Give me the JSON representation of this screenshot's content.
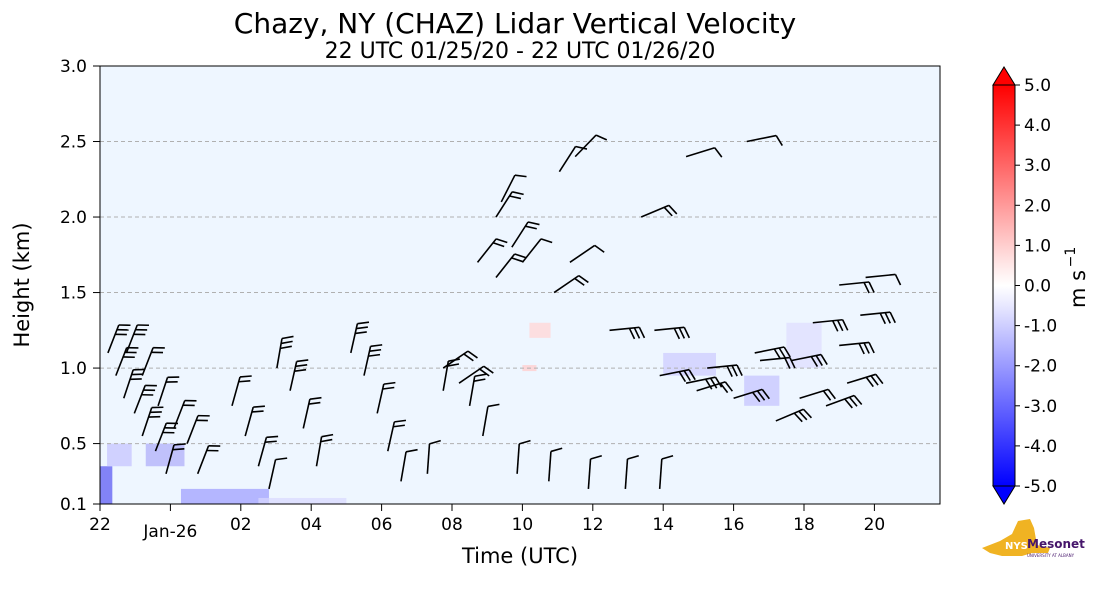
{
  "chart_data": {
    "type": "heatmap",
    "title": "Chazy, NY (CHAZ) Lidar Vertical Velocity",
    "subtitle": "22 UTC 01/25/20 - 22 UTC 01/26/20",
    "xlabel": "Time (UTC)",
    "ylabel": "Height (km)",
    "x_ticks": [
      "22",
      "Jan-26",
      "02",
      "04",
      "06",
      "08",
      "10",
      "12",
      "14",
      "16",
      "18",
      "20"
    ],
    "y_ticks": [
      "0.1",
      "0.5",
      "1.0",
      "1.5",
      "2.0",
      "2.5",
      "3.0"
    ],
    "ylim": [
      0.1,
      3.0
    ],
    "grid": "horizontal dashed at 0.5, 1.0, 1.5, 2.0, 2.5",
    "colorbar": {
      "label": "m s",
      "label_superscript": "−1",
      "ticks": [
        "5.0",
        "4.0",
        "3.0",
        "2.0",
        "1.0",
        "0.0",
        "-1.0",
        "-2.0",
        "-3.0",
        "-4.0",
        "-5.0"
      ],
      "range": [
        -5.0,
        5.0
      ],
      "extend": "both",
      "colormap": "bwr"
    },
    "field_note": "mostly near 0 m/s (pale blue-white); weak negative patches near surface 22-03 UTC and ~1.0 km 15-19 UTC",
    "wind_barbs": true
  },
  "logo": {
    "text": "Mesonet",
    "state_text": "NYS",
    "subtext": "UNIVERSITY AT ALBANY"
  },
  "colors": {
    "background_field": "#eef6ff",
    "negative": "#0000ff",
    "positive": "#ff0000",
    "grid": "#b0b0b0",
    "logo_gold": "#f0b323",
    "logo_purple": "#46166b"
  }
}
